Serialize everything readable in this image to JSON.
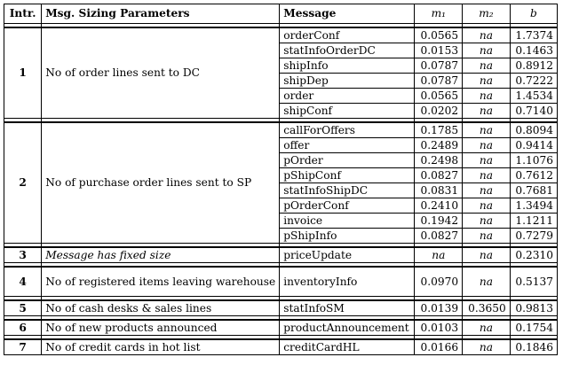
{
  "header": {
    "intr": "Intr.",
    "params": "Msg. Sizing Parameters",
    "message": "Message",
    "m1": "m₁",
    "m2": "m₂",
    "b": "b"
  },
  "groups": [
    {
      "intr": "1",
      "param": "No of order lines sent to DC",
      "rows": [
        {
          "message": "orderConf",
          "m1": "0.0565",
          "m2": "na",
          "b": "1.7374"
        },
        {
          "message": "statInfoOrderDC",
          "m1": "0.0153",
          "m2": "na",
          "b": "0.1463"
        },
        {
          "message": "shipInfo",
          "m1": "0.0787",
          "m2": "na",
          "b": "0.8912"
        },
        {
          "message": "shipDep",
          "m1": "0.0787",
          "m2": "na",
          "b": "0.7222"
        },
        {
          "message": "order",
          "m1": "0.0565",
          "m2": "na",
          "b": "1.4534"
        },
        {
          "message": "shipConf",
          "m1": "0.0202",
          "m2": "na",
          "b": "0.7140"
        }
      ]
    },
    {
      "intr": "2",
      "param": "No of purchase order lines sent to SP",
      "rows": [
        {
          "message": "callForOffers",
          "m1": "0.1785",
          "m2": "na",
          "b": "0.8094"
        },
        {
          "message": "offer",
          "m1": "0.2489",
          "m2": "na",
          "b": "0.9414"
        },
        {
          "message": "pOrder",
          "m1": "0.2498",
          "m2": "na",
          "b": "1.1076"
        },
        {
          "message": "pShipConf",
          "m1": "0.0827",
          "m2": "na",
          "b": "0.7612"
        },
        {
          "message": "statInfoShipDC",
          "m1": "0.0831",
          "m2": "na",
          "b": "0.7681"
        },
        {
          "message": "pOrderConf",
          "m1": "0.2410",
          "m2": "na",
          "b": "1.3494"
        },
        {
          "message": "invoice",
          "m1": "0.1942",
          "m2": "na",
          "b": "1.1211"
        },
        {
          "message": "pShipInfo",
          "m1": "0.0827",
          "m2": "na",
          "b": "0.7279"
        }
      ]
    },
    {
      "intr": "3",
      "param": "Message has fixed size",
      "italic": true,
      "rows": [
        {
          "message": "priceUpdate",
          "m1": "na",
          "m2": "na",
          "b": "0.2310"
        }
      ]
    },
    {
      "intr": "4",
      "param": "No of registered items leaving warehouse",
      "tall": true,
      "rows": [
        {
          "message": "inventoryInfo",
          "m1": "0.0970",
          "m2": "na",
          "b": "0.5137"
        }
      ]
    },
    {
      "intr": "5",
      "param": "No of cash desks & sales lines",
      "rows": [
        {
          "message": "statInfoSM",
          "m1": "0.0139",
          "m2": "0.3650",
          "b": "0.9813"
        }
      ]
    },
    {
      "intr": "6",
      "param": "No of new products announced",
      "rows": [
        {
          "message": "productAnnouncement",
          "m1": "0.0103",
          "m2": "na",
          "b": "0.1754"
        }
      ]
    },
    {
      "intr": "7",
      "param": "No of credit cards in hot list",
      "rows": [
        {
          "message": "creditCardHL",
          "m1": "0.0166",
          "m2": "na",
          "b": "0.1846"
        }
      ]
    }
  ]
}
